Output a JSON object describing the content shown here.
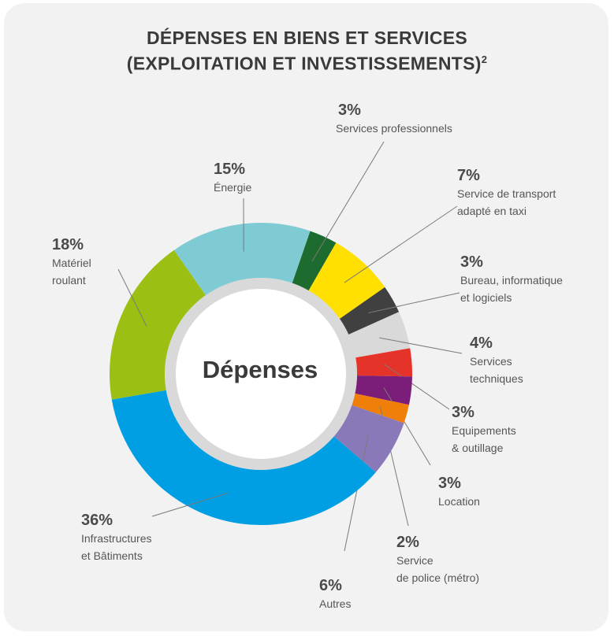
{
  "chart_data": {
    "type": "pie",
    "title_line1": "DÉPENSES EN BIENS ET SERVICES",
    "title_line2": "(EXPLOITATION ET INVESTISSEMENTS)",
    "title_sup": "2",
    "center_label": "Dépenses",
    "slices": [
      {
        "label": "Services professionnels",
        "pct_label": "3%",
        "value": 3,
        "color": "#1e6b2f"
      },
      {
        "label": "Service de transport\nadapté en taxi",
        "pct_label": "7%",
        "value": 7,
        "color": "#ffe000"
      },
      {
        "label": "Bureau, informatique\net logiciels",
        "pct_label": "3%",
        "value": 3,
        "color": "#404040"
      },
      {
        "label": "Services\ntechniques",
        "pct_label": "4%",
        "value": 4,
        "color": "#d9d9d9"
      },
      {
        "label": "Equipements\n& outillage",
        "pct_label": "3%",
        "value": 3,
        "color": "#e63329"
      },
      {
        "label": "Location",
        "pct_label": "3%",
        "value": 3,
        "color": "#7b1e7a"
      },
      {
        "label": "Service\nde police (métro)",
        "pct_label": "2%",
        "value": 2,
        "color": "#f07f0a"
      },
      {
        "label": "Autres",
        "pct_label": "6%",
        "value": 6,
        "color": "#8a79b8"
      },
      {
        "label": "Infrastructures\net Bâtiments",
        "pct_label": "36%",
        "value": 36,
        "color": "#009fe3"
      },
      {
        "label": "Matériel\nroulant",
        "pct_label": "18%",
        "value": 18,
        "color": "#9bbf12"
      },
      {
        "label": "Énergie",
        "pct_label": "15%",
        "value": 15,
        "color": "#7fcbd3"
      }
    ]
  }
}
